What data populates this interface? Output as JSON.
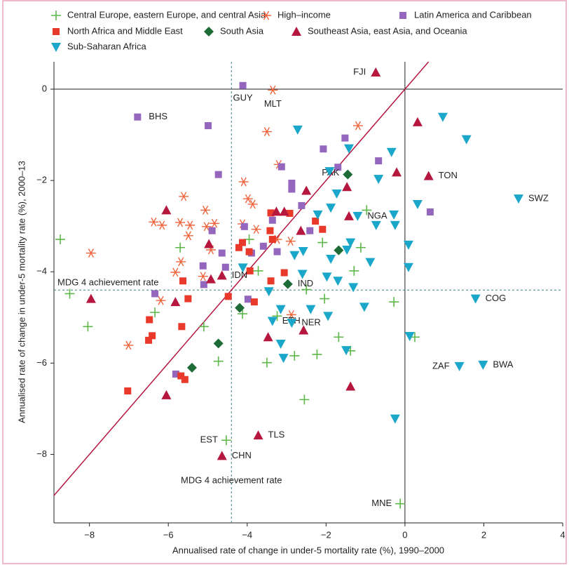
{
  "chart_data": {
    "type": "scatter",
    "x_label": "Annualised rate of change in under-5 mortality rate (%), 1990–2000",
    "y_label": "Annualised rate of change in under-5 mortality rate (%), 2000–13",
    "xlim": [
      -8.9,
      4
    ],
    "ylim": [
      -9.5,
      0.6
    ],
    "xticks": [
      {
        "value": -8,
        "label": "−8"
      },
      {
        "value": -6,
        "label": "−6"
      },
      {
        "value": -4,
        "label": "−4"
      },
      {
        "value": -2,
        "label": "−2"
      },
      0,
      2,
      4
    ],
    "yticks": [
      {
        "value": -8,
        "label": "−8"
      },
      {
        "value": -6,
        "label": "−6"
      },
      {
        "value": -4,
        "label": "−4"
      },
      {
        "value": -2,
        "label": "−2"
      },
      0
    ],
    "mdg_rate": -4.4,
    "mdg_label": "MDG 4 achievement rate",
    "series": [
      {
        "name": "Central Europe, eastern Europe, and central Asia",
        "color": "#5db84a",
        "marker": "plus",
        "x": [
          -8.74,
          -8.5,
          -8.04,
          -6.34,
          -5.7,
          -5.1,
          -4.73,
          -4.53,
          -4.12,
          -3.72,
          -3.95,
          -3.5,
          -3.24,
          -2.8,
          -2.55,
          -2.23,
          -2.09,
          -2.04,
          -1.68,
          -1.38,
          -1.29,
          -1.12,
          -0.97,
          -0.28,
          0.25,
          -0.12,
          -2.5
        ],
        "values": [
          -3.29,
          -4.48,
          -5.2,
          -4.89,
          -3.47,
          -5.2,
          -5.96,
          -7.69,
          -4.92,
          -3.98,
          -3.29,
          -5.99,
          -4.97,
          -5.84,
          -6.8,
          -5.81,
          -3.36,
          -4.59,
          -5.43,
          -5.73,
          -3.98,
          -3.47,
          -2.65,
          -4.66,
          -5.43,
          -9.08,
          -4.39
        ],
        "labels": [
          null,
          null,
          null,
          null,
          null,
          null,
          null,
          "EST",
          null,
          null,
          null,
          null,
          null,
          null,
          null,
          null,
          null,
          null,
          null,
          null,
          null,
          null,
          null,
          null,
          null,
          "MNE",
          null
        ]
      },
      {
        "name": "High–income",
        "color": "#f0643c",
        "marker": "asterisk",
        "x": [
          -3.35,
          -7.96,
          -7.01,
          -6.37,
          -6.16,
          -6.19,
          -5.82,
          -5.68,
          -5.61,
          -5.7,
          -5.45,
          -5.49,
          -5.06,
          -5.03,
          -4.83,
          -5.12,
          -4.92,
          -4.09,
          -3.98,
          -3.86,
          -4.12,
          -3.77,
          -3.5,
          -3.2,
          -1.19,
          -3.24,
          -2.9,
          -2.88
        ],
        "values": [
          -0.02,
          -3.59,
          -5.61,
          -2.91,
          -2.98,
          -4.63,
          -4.01,
          -3.78,
          -2.35,
          -2.92,
          -2.98,
          -3.21,
          -2.65,
          -3.01,
          -2.94,
          -4.1,
          -3.52,
          -2.03,
          -2.4,
          -2.52,
          -2.95,
          -3.07,
          -0.93,
          -1.65,
          -0.8,
          -3.29,
          -3.33,
          -4.94
        ],
        "labels": [
          "MLT",
          null,
          null,
          null,
          null,
          null,
          null,
          null,
          null,
          null,
          null,
          null,
          null,
          null,
          null,
          null,
          null,
          null,
          null,
          null,
          null,
          null,
          null,
          null,
          null,
          null,
          null,
          null
        ]
      },
      {
        "name": "Latin America and Caribbean",
        "color": "#9466bd",
        "marker": "square",
        "x": [
          -4.11,
          -6.78,
          -4.99,
          -4.73,
          -5.81,
          -6.34,
          -5.12,
          -4.89,
          -4.64,
          -4.55,
          -4.07,
          -3.89,
          -3.98,
          -3.59,
          -3.36,
          -3.13,
          -2.87,
          -2.87,
          -2.62,
          -2.41,
          -2.07,
          -1.52,
          -1.7,
          -0.67,
          0.64,
          -3.24,
          -5.1
        ],
        "values": [
          0.08,
          -0.61,
          -0.8,
          -1.87,
          -6.24,
          -4.48,
          -3.87,
          -3.1,
          -3.59,
          -3.9,
          -3.01,
          -3.59,
          -4.6,
          -3.44,
          -2.87,
          -1.7,
          -2.06,
          -2.19,
          -2.55,
          -3.1,
          -1.31,
          -1.07,
          -1.71,
          -1.57,
          -2.69,
          -3.56,
          -4.28
        ],
        "labels": [
          "GUY",
          "BHS",
          null,
          null,
          null,
          null,
          null,
          null,
          null,
          null,
          null,
          null,
          null,
          null,
          null,
          null,
          null,
          null,
          null,
          null,
          null,
          null,
          null,
          null,
          null,
          null,
          null
        ]
      },
      {
        "name": "North Africa and Middle East",
        "color": "#e8392b",
        "marker": "square",
        "x": [
          -7.03,
          -6.48,
          -6.41,
          -6.5,
          -5.63,
          -5.5,
          -5.66,
          -5.68,
          -5.58,
          -4.48,
          -4.21,
          -4.12,
          -3.95,
          -3.93,
          -3.82,
          -3.4,
          -3.42,
          -3.36,
          -3.4,
          -3.06,
          -2.92,
          -2.27,
          -2.09
        ],
        "values": [
          -6.61,
          -5.05,
          -5.4,
          -5.5,
          -4.2,
          -4.59,
          -5.2,
          -6.28,
          -6.36,
          -4.54,
          -3.47,
          -3.36,
          -3.56,
          -3.98,
          -4.66,
          -2.71,
          -3.1,
          -3.29,
          -4.2,
          -4.02,
          -2.72,
          -2.89,
          -3.07
        ]
      },
      {
        "name": "South Asia",
        "color": "#1d6b36",
        "marker": "diamond",
        "x": [
          -1.45,
          -1.68,
          -2.97,
          -4.19,
          -4.73,
          -5.4
        ],
        "values": [
          -1.87,
          -3.53,
          -4.27,
          -4.79,
          -5.57,
          -6.1
        ],
        "labels": [
          "PAK",
          null,
          "IND",
          null,
          null,
          null
        ]
      },
      {
        "name": "Southeast Asia, east Asia, and Oceania",
        "color": "#b5173f",
        "marker": "triangle-up",
        "x": [
          -0.74,
          0.32,
          -0.21,
          0.6,
          -6.05,
          -7.96,
          -6.05,
          -5.82,
          -4.97,
          -4.92,
          -4.64,
          -3.26,
          -3.06,
          -2.64,
          -2.5,
          -1.47,
          -1.42,
          -3.47,
          -2.57,
          -3.72,
          -4.64,
          -1.38
        ],
        "values": [
          0.37,
          -0.72,
          -1.82,
          -1.9,
          -2.65,
          -4.59,
          -6.7,
          -4.66,
          -3.39,
          -4.16,
          -4.08,
          -2.68,
          -2.68,
          -3.1,
          -2.22,
          -2.14,
          -2.78,
          -5.43,
          -5.28,
          -7.58,
          -8.03,
          -6.51
        ],
        "labels": [
          "FJI",
          null,
          null,
          "TON",
          null,
          null,
          null,
          null,
          null,
          null,
          "IDN",
          null,
          null,
          null,
          null,
          null,
          null,
          null,
          null,
          "TLS",
          "CHN",
          null
        ]
      },
      {
        "name": "Sub-Saharan Africa",
        "color": "#1ba7c9",
        "marker": "triangle-down",
        "x": [
          0.96,
          1.56,
          -2.72,
          0.32,
          2.88,
          1.79,
          1.38,
          1.98,
          -0.25,
          0.12,
          0.09,
          0.09,
          -0.34,
          -0.67,
          -0.28,
          -1.2,
          -0.25,
          -0.73,
          -1.38,
          -1.47,
          -0.88,
          -1.88,
          -2.21,
          -2.58,
          -2.6,
          -1.98,
          -1.7,
          -1.31,
          -3.45,
          -4.11,
          -3.15,
          -2.39,
          -3.36,
          -2.87,
          -1.95,
          -1.03,
          -3.15,
          -3.08,
          -1.49,
          -1.91,
          -1.88,
          -1.73,
          -1.42,
          -2.8
        ],
        "values": [
          -0.61,
          -1.1,
          -0.89,
          -2.52,
          -2.4,
          -4.59,
          -6.07,
          -6.04,
          -7.22,
          -5.41,
          -3.9,
          -3.41,
          -1.38,
          -1.97,
          -2.75,
          -2.78,
          -2.98,
          -2.98,
          -3.36,
          -3.52,
          -3.79,
          -3.72,
          -2.75,
          -3.55,
          -4.05,
          -4.11,
          -4.2,
          -4.34,
          -4.43,
          -3.91,
          -4.82,
          -4.82,
          -5.08,
          -5.12,
          -4.97,
          -4.77,
          -5.58,
          -5.89,
          -5.72,
          -1.8,
          -2.6,
          -2.29,
          -1.3,
          -3.64
        ],
        "labels": [
          null,
          null,
          null,
          null,
          "SWZ",
          "COG",
          "ZAF",
          "BWA",
          null,
          null,
          null,
          null,
          null,
          null,
          null,
          "NGA",
          null,
          null,
          null,
          null,
          null,
          null,
          null,
          null,
          null,
          null,
          null,
          null,
          null,
          null,
          null,
          null,
          "ETH",
          "NER",
          null,
          null,
          null,
          null,
          null,
          null,
          null,
          null,
          null,
          null
        ]
      }
    ]
  }
}
